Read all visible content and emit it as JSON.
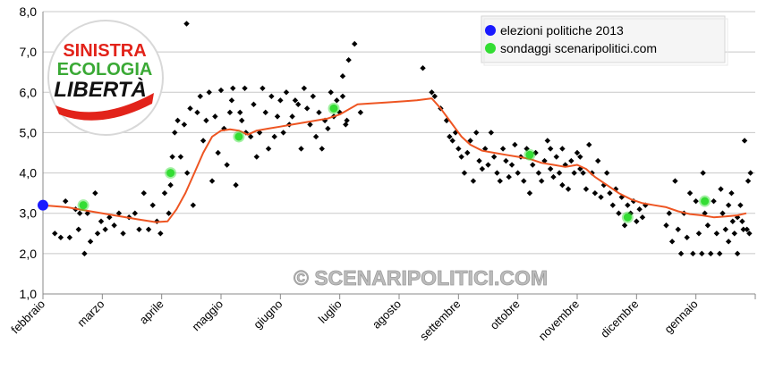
{
  "chart_data": {
    "type": "scatter",
    "title": "",
    "xlabel": "",
    "ylabel": "",
    "ylim": [
      1.0,
      8.0
    ],
    "ytick_labels": [
      "1,0",
      "2,0",
      "3,0",
      "4,0",
      "5,0",
      "6,0",
      "7,0",
      "8,0"
    ],
    "categories": [
      "febbraio",
      "marzo",
      "aprile",
      "maggio",
      "giugno",
      "luglio",
      "agosto",
      "settembre",
      "ottobre",
      "novembre",
      "dicembre",
      "gennaio"
    ],
    "grid": true,
    "legend_position": "top-right",
    "legend": [
      {
        "label": "elezioni politiche 2013",
        "color": "#1a1aff"
      },
      {
        "label": "sondaggi scenaripolitici.com",
        "color": "#33dd33"
      }
    ],
    "watermark": "© SCENARIPOLITICI.COM",
    "logo": {
      "line1": "SINISTRA",
      "line2": "ECOLOGIA",
      "line3": "LIBERTÀ"
    },
    "colors": {
      "trend": "#ee5522",
      "points": "#000000",
      "grid": "#c8c8c8"
    },
    "elezioni": [
      {
        "month": 0.0,
        "value": 3.2
      }
    ],
    "sondaggi": [
      {
        "month": 0.68,
        "value": 3.2
      },
      {
        "month": 2.15,
        "value": 4.0
      },
      {
        "month": 3.3,
        "value": 4.9
      },
      {
        "month": 4.9,
        "value": 5.6
      },
      {
        "month": 8.2,
        "value": 4.45
      },
      {
        "month": 9.85,
        "value": 2.9
      },
      {
        "month": 11.15,
        "value": 3.3
      }
    ],
    "trend": [
      [
        0.0,
        3.2
      ],
      [
        0.4,
        3.15
      ],
      [
        0.8,
        3.05
      ],
      [
        1.2,
        2.95
      ],
      [
        1.6,
        2.85
      ],
      [
        1.9,
        2.78
      ],
      [
        2.1,
        2.8
      ],
      [
        2.25,
        3.1
      ],
      [
        2.4,
        3.5
      ],
      [
        2.55,
        4.0
      ],
      [
        2.7,
        4.5
      ],
      [
        2.85,
        4.9
      ],
      [
        3.0,
        5.05
      ],
      [
        3.15,
        5.08
      ],
      [
        3.3,
        5.05
      ],
      [
        3.45,
        4.95
      ],
      [
        3.6,
        5.05
      ],
      [
        3.8,
        5.1
      ],
      [
        4.0,
        5.15
      ],
      [
        4.2,
        5.2
      ],
      [
        4.4,
        5.25
      ],
      [
        4.6,
        5.3
      ],
      [
        4.8,
        5.35
      ],
      [
        5.0,
        5.45
      ],
      [
        5.3,
        5.7
      ],
      [
        5.5,
        5.72
      ],
      [
        5.8,
        5.75
      ],
      [
        6.1,
        5.78
      ],
      [
        6.3,
        5.8
      ],
      [
        6.55,
        5.85
      ],
      [
        6.7,
        5.6
      ],
      [
        6.9,
        5.2
      ],
      [
        7.05,
        4.9
      ],
      [
        7.2,
        4.7
      ],
      [
        7.4,
        4.55
      ],
      [
        7.6,
        4.5
      ],
      [
        7.8,
        4.45
      ],
      [
        8.0,
        4.4
      ],
      [
        8.2,
        4.35
      ],
      [
        8.4,
        4.25
      ],
      [
        8.6,
        4.2
      ],
      [
        8.8,
        4.15
      ],
      [
        9.0,
        4.2
      ],
      [
        9.15,
        4.1
      ],
      [
        9.3,
        3.9
      ],
      [
        9.5,
        3.7
      ],
      [
        9.7,
        3.5
      ],
      [
        9.9,
        3.35
      ],
      [
        10.1,
        3.25
      ],
      [
        10.3,
        3.2
      ],
      [
        10.5,
        3.15
      ],
      [
        10.7,
        3.05
      ],
      [
        10.9,
        2.98
      ],
      [
        11.1,
        2.95
      ],
      [
        11.3,
        2.9
      ],
      [
        11.5,
        2.92
      ],
      [
        11.7,
        2.95
      ],
      [
        11.85,
        3.0
      ]
    ],
    "points": [
      [
        0.2,
        2.5
      ],
      [
        0.3,
        2.4
      ],
      [
        0.38,
        3.3
      ],
      [
        0.45,
        2.4
      ],
      [
        0.55,
        3.1
      ],
      [
        0.6,
        2.6
      ],
      [
        0.62,
        3.0
      ],
      [
        0.7,
        2.0
      ],
      [
        0.75,
        3.0
      ],
      [
        0.8,
        2.3
      ],
      [
        0.88,
        3.5
      ],
      [
        0.92,
        2.5
      ],
      [
        0.98,
        2.8
      ],
      [
        1.05,
        2.6
      ],
      [
        1.12,
        2.9
      ],
      [
        1.2,
        2.7
      ],
      [
        1.28,
        3.0
      ],
      [
        1.35,
        2.5
      ],
      [
        1.45,
        2.9
      ],
      [
        1.55,
        3.0
      ],
      [
        1.62,
        2.6
      ],
      [
        1.7,
        3.5
      ],
      [
        1.78,
        2.6
      ],
      [
        1.85,
        3.2
      ],
      [
        1.92,
        2.8
      ],
      [
        1.98,
        2.5
      ],
      [
        2.05,
        3.5
      ],
      [
        2.12,
        3.0
      ],
      [
        2.15,
        3.7
      ],
      [
        2.18,
        4.4
      ],
      [
        2.22,
        5.0
      ],
      [
        2.27,
        5.3
      ],
      [
        2.32,
        4.4
      ],
      [
        2.38,
        5.2
      ],
      [
        2.43,
        4.0
      ],
      [
        2.48,
        5.6
      ],
      [
        2.53,
        3.2
      ],
      [
        2.6,
        5.5
      ],
      [
        2.65,
        5.9
      ],
      [
        2.7,
        4.8
      ],
      [
        2.75,
        5.3
      ],
      [
        2.8,
        6.0
      ],
      [
        2.85,
        3.8
      ],
      [
        2.9,
        5.4
      ],
      [
        2.95,
        4.5
      ],
      [
        3.0,
        6.05
      ],
      [
        3.05,
        5.1
      ],
      [
        3.1,
        4.2
      ],
      [
        3.15,
        5.5
      ],
      [
        3.2,
        6.1
      ],
      [
        3.25,
        3.7
      ],
      [
        3.35,
        5.3
      ],
      [
        3.4,
        6.1
      ],
      [
        3.5,
        4.9
      ],
      [
        3.55,
        5.7
      ],
      [
        3.6,
        4.4
      ],
      [
        3.65,
        5.0
      ],
      [
        3.7,
        6.1
      ],
      [
        3.75,
        5.5
      ],
      [
        3.8,
        4.6
      ],
      [
        3.85,
        5.9
      ],
      [
        3.9,
        4.9
      ],
      [
        3.95,
        5.4
      ],
      [
        4.0,
        5.8
      ],
      [
        4.05,
        5.0
      ],
      [
        4.1,
        6.0
      ],
      [
        4.15,
        5.2
      ],
      [
        4.2,
        5.4
      ],
      [
        4.3,
        5.7
      ],
      [
        4.35,
        4.6
      ],
      [
        4.4,
        6.1
      ],
      [
        4.45,
        5.6
      ],
      [
        4.5,
        5.2
      ],
      [
        4.55,
        5.9
      ],
      [
        4.6,
        4.9
      ],
      [
        4.65,
        5.5
      ],
      [
        4.75,
        5.3
      ],
      [
        4.8,
        5.1
      ],
      [
        4.85,
        6.0
      ],
      [
        4.9,
        5.4
      ],
      [
        4.95,
        5.8
      ],
      [
        5.0,
        5.5
      ],
      [
        5.05,
        6.4
      ],
      [
        5.1,
        5.2
      ],
      [
        5.15,
        6.8
      ],
      [
        5.25,
        7.2
      ],
      [
        5.35,
        5.5
      ],
      [
        2.42,
        7.7
      ],
      [
        3.18,
        5.8
      ],
      [
        3.32,
        5.5
      ],
      [
        3.42,
        5.0
      ],
      [
        5.05,
        5.9
      ],
      [
        5.12,
        5.3
      ],
      [
        4.7,
        4.6
      ],
      [
        4.25,
        5.8
      ],
      [
        6.4,
        6.6
      ],
      [
        6.55,
        6.0
      ],
      [
        6.6,
        5.9
      ],
      [
        6.7,
        5.6
      ],
      [
        6.8,
        5.3
      ],
      [
        6.85,
        4.9
      ],
      [
        6.9,
        4.8
      ],
      [
        6.95,
        5.0
      ],
      [
        7.0,
        4.6
      ],
      [
        7.05,
        4.4
      ],
      [
        7.1,
        4.0
      ],
      [
        7.15,
        4.5
      ],
      [
        7.2,
        4.8
      ],
      [
        7.25,
        3.8
      ],
      [
        7.3,
        5.0
      ],
      [
        7.35,
        4.3
      ],
      [
        7.4,
        4.1
      ],
      [
        7.45,
        4.6
      ],
      [
        7.5,
        4.2
      ],
      [
        7.55,
        5.0
      ],
      [
        7.6,
        4.4
      ],
      [
        7.65,
        4.0
      ],
      [
        7.7,
        3.8
      ],
      [
        7.75,
        4.6
      ],
      [
        7.8,
        4.3
      ],
      [
        7.85,
        3.9
      ],
      [
        7.9,
        4.2
      ],
      [
        7.95,
        4.7
      ],
      [
        8.0,
        4.0
      ],
      [
        8.05,
        4.4
      ],
      [
        8.1,
        3.8
      ],
      [
        8.15,
        4.6
      ],
      [
        8.2,
        3.5
      ],
      [
        8.25,
        4.2
      ],
      [
        8.3,
        4.5
      ],
      [
        8.35,
        4.0
      ],
      [
        8.4,
        3.8
      ],
      [
        8.45,
        4.3
      ],
      [
        8.5,
        4.8
      ],
      [
        8.55,
        4.1
      ],
      [
        8.6,
        3.9
      ],
      [
        8.65,
        4.4
      ],
      [
        8.7,
        4.0
      ],
      [
        8.75,
        4.6
      ],
      [
        8.8,
        4.2
      ],
      [
        8.85,
        3.6
      ],
      [
        8.9,
        4.3
      ],
      [
        8.95,
        4.0
      ],
      [
        9.0,
        4.5
      ],
      [
        9.05,
        4.1
      ],
      [
        9.1,
        4.0
      ],
      [
        9.15,
        3.6
      ],
      [
        9.2,
        4.7
      ],
      [
        9.25,
        4.0
      ],
      [
        9.3,
        3.5
      ],
      [
        9.35,
        4.3
      ],
      [
        9.4,
        3.4
      ],
      [
        9.45,
        3.7
      ],
      [
        9.5,
        4.0
      ],
      [
        9.55,
        3.5
      ],
      [
        9.6,
        3.2
      ],
      [
        9.65,
        3.6
      ],
      [
        9.7,
        3.0
      ],
      [
        9.75,
        3.4
      ],
      [
        9.8,
        2.7
      ],
      [
        9.85,
        3.2
      ],
      [
        9.9,
        3.0
      ],
      [
        9.95,
        3.3
      ],
      [
        10.0,
        2.8
      ],
      [
        10.05,
        3.1
      ],
      [
        10.1,
        2.9
      ],
      [
        10.15,
        3.2
      ],
      [
        9.05,
        4.4
      ],
      [
        8.75,
        3.7
      ],
      [
        8.55,
        4.6
      ],
      [
        10.5,
        2.7
      ],
      [
        10.55,
        3.0
      ],
      [
        10.6,
        2.3
      ],
      [
        10.65,
        3.8
      ],
      [
        10.7,
        2.6
      ],
      [
        10.75,
        2.0
      ],
      [
        10.8,
        3.0
      ],
      [
        10.85,
        2.4
      ],
      [
        10.9,
        3.5
      ],
      [
        10.95,
        2.0
      ],
      [
        11.0,
        3.3
      ],
      [
        11.05,
        2.5
      ],
      [
        11.1,
        2.0
      ],
      [
        11.15,
        3.0
      ],
      [
        11.2,
        2.7
      ],
      [
        11.25,
        2.0
      ],
      [
        11.3,
        3.3
      ],
      [
        11.35,
        2.5
      ],
      [
        11.4,
        2.0
      ],
      [
        11.45,
        3.0
      ],
      [
        11.5,
        2.6
      ],
      [
        11.55,
        2.3
      ],
      [
        11.6,
        3.5
      ],
      [
        11.65,
        2.5
      ],
      [
        11.7,
        2.0
      ],
      [
        11.75,
        3.2
      ],
      [
        11.8,
        2.6
      ],
      [
        11.82,
        4.8
      ],
      [
        11.86,
        2.6
      ],
      [
        11.88,
        3.8
      ],
      [
        11.9,
        2.5
      ],
      [
        11.92,
        4.0
      ],
      [
        11.12,
        4.0
      ],
      [
        11.42,
        3.6
      ],
      [
        11.55,
        3.2
      ],
      [
        11.62,
        2.8
      ],
      [
        11.7,
        2.9
      ],
      [
        11.78,
        2.8
      ]
    ]
  }
}
